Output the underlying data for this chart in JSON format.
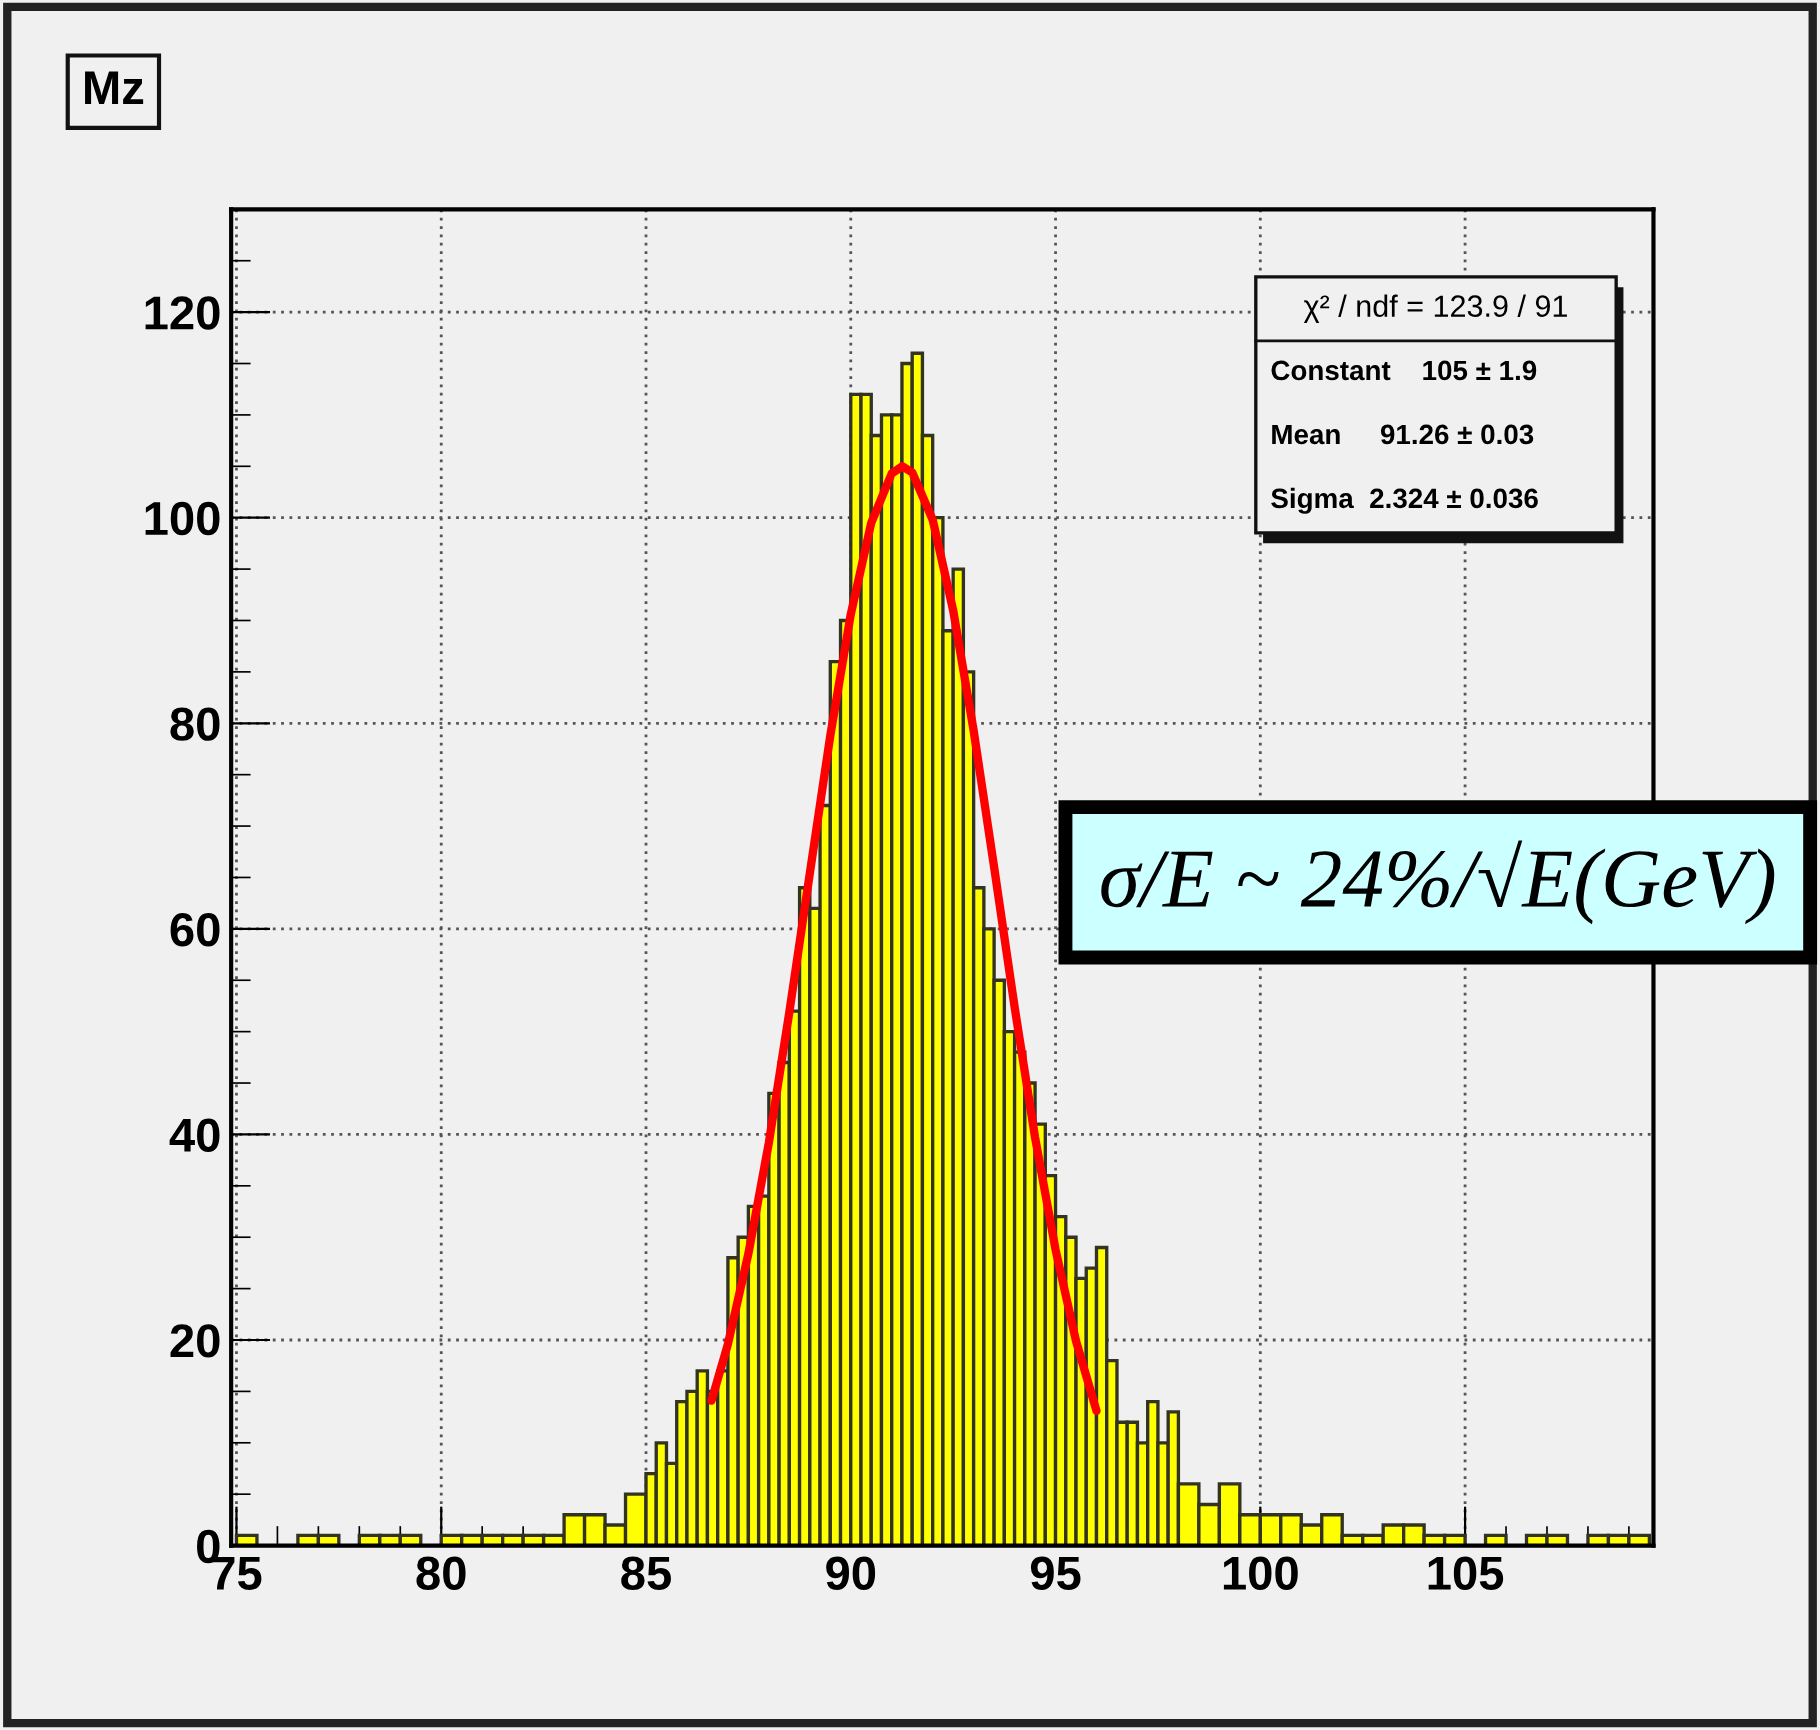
{
  "chart_data": {
    "type": "histogram",
    "title": "Mz",
    "bins": [
      75,
      75.5,
      76.5,
      77,
      77.5,
      78,
      78.5,
      79,
      79.5,
      80,
      80.5,
      81,
      81.5,
      82,
      82.5,
      83,
      83.5,
      84,
      84.5,
      85,
      85.25,
      85.5,
      85.75,
      86,
      86.25,
      86.5,
      86.75,
      87,
      87.25,
      87.5,
      87.75,
      88,
      88.25,
      88.5,
      88.75,
      89,
      89.25,
      89.5,
      89.75,
      90,
      90.25,
      90.5,
      90.75,
      91,
      91.25,
      91.5,
      91.75,
      92,
      92.25,
      92.5,
      92.75,
      93,
      93.25,
      93.5,
      93.75,
      94,
      94.25,
      94.5,
      94.75,
      95,
      95.25,
      95.5,
      95.75,
      96,
      96.25,
      96.5,
      96.75,
      97,
      97.25,
      97.5,
      97.75,
      98,
      98.5,
      99,
      99.5,
      100,
      100.5,
      101,
      101.5,
      102,
      102.5,
      103,
      103.5,
      104,
      104.5,
      105,
      105.5,
      106,
      106.5,
      107,
      107.5,
      108,
      108.5,
      109,
      109.5
    ],
    "values": [
      1,
      0,
      1,
      1,
      0,
      1,
      1,
      1,
      0,
      1,
      1,
      1,
      1,
      1,
      1,
      3,
      3,
      2,
      5,
      7,
      10,
      8,
      14,
      15,
      17,
      15,
      17,
      28,
      30,
      33,
      34,
      44,
      47,
      52,
      64,
      62,
      72,
      86,
      90,
      112,
      112,
      108,
      110,
      110,
      115,
      116,
      108,
      100,
      89,
      95,
      85,
      64,
      60,
      55,
      50,
      48,
      45,
      41,
      36,
      32,
      30,
      26,
      27,
      29,
      18,
      12,
      12,
      10,
      14,
      10,
      13,
      6,
      4,
      6,
      3,
      3,
      3,
      2,
      3,
      1,
      1,
      2,
      2,
      1,
      1,
      0,
      1,
      0,
      1,
      1,
      0,
      1,
      1,
      1
    ],
    "color": "#ffff00",
    "series": [
      {
        "type": "line",
        "color": "#ff0000",
        "x": [
          86.6,
          87,
          87.5,
          88,
          88.5,
          89,
          89.5,
          90,
          90.5,
          91,
          91.26,
          91.5,
          92,
          92.5,
          93,
          93.5,
          94,
          94.5,
          95,
          95.5,
          96
        ],
        "values": [
          14.1,
          19.6,
          28.4,
          39.2,
          51.9,
          65.4,
          78.8,
          90.6,
          99.5,
          104.3,
          105,
          104.4,
          99.8,
          91.0,
          79.3,
          66.0,
          52.4,
          39.7,
          28.8,
          19.9,
          13.1
        ]
      }
    ],
    "xlim": [
      74.87,
      109.6
    ],
    "xticks": [
      75,
      80,
      85,
      90,
      95,
      100,
      105
    ],
    "ylim": [
      0,
      130
    ],
    "yticks": [
      0,
      20,
      40,
      60,
      80,
      100,
      120
    ],
    "grid": true,
    "annotations": [
      "χ² / ndf = 123.9 / 91",
      "Constant    105 ± 1.9",
      "Mean     91.26 ± 0.03",
      "Sigma  2.324 ± 0.036",
      "σ/E ~ 24%/√E(GeV)"
    ]
  }
}
